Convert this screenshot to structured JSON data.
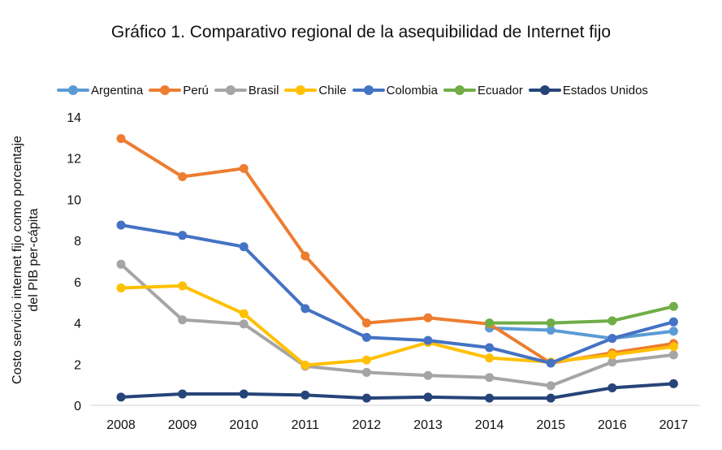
{
  "chart_data": {
    "type": "line",
    "title": "Gráfico 1. Comparativo regional de la asequibilidad de Internet fijo",
    "ylabel_lines": [
      "Costo servicio internet fijo como porcentaje",
      "del PIB per-cápita"
    ],
    "xlabel": "",
    "x": [
      "2008",
      "2009",
      "2010",
      "2011",
      "2012",
      "2013",
      "2014",
      "2015",
      "2016",
      "2017"
    ],
    "ylim": [
      0,
      14
    ],
    "yticks": [
      0,
      2,
      4,
      6,
      8,
      10,
      12,
      14
    ],
    "grid": false,
    "legend_position": "top",
    "series": [
      {
        "name": "Argentina",
        "color": "#5B9BD5",
        "values": [
          null,
          null,
          null,
          null,
          null,
          null,
          3.75,
          3.65,
          3.25,
          3.6
        ]
      },
      {
        "name": "Perú",
        "color": "#ED7D31",
        "values": [
          12.95,
          11.1,
          11.5,
          7.25,
          4.0,
          4.25,
          3.95,
          2.05,
          2.55,
          3.0
        ]
      },
      {
        "name": "Brasil",
        "color": "#A5A5A5",
        "values": [
          6.85,
          4.15,
          3.95,
          1.9,
          1.6,
          1.45,
          1.35,
          0.95,
          2.1,
          2.45
        ]
      },
      {
        "name": "Chile",
        "color": "#FFC000",
        "values": [
          5.7,
          5.8,
          4.45,
          1.95,
          2.2,
          3.05,
          2.3,
          2.1,
          2.45,
          2.85
        ]
      },
      {
        "name": "Colombia",
        "color": "#4472C4",
        "values": [
          8.75,
          8.25,
          7.7,
          4.7,
          3.3,
          3.15,
          2.8,
          2.05,
          3.25,
          4.05
        ]
      },
      {
        "name": "Ecuador",
        "color": "#70AD47",
        "values": [
          null,
          null,
          null,
          null,
          null,
          null,
          4.0,
          4.0,
          4.1,
          4.8
        ]
      },
      {
        "name": "Estados Unidos",
        "color": "#264478",
        "values": [
          0.4,
          0.55,
          0.55,
          0.5,
          0.35,
          0.4,
          0.35,
          0.35,
          0.85,
          1.05
        ]
      }
    ]
  }
}
